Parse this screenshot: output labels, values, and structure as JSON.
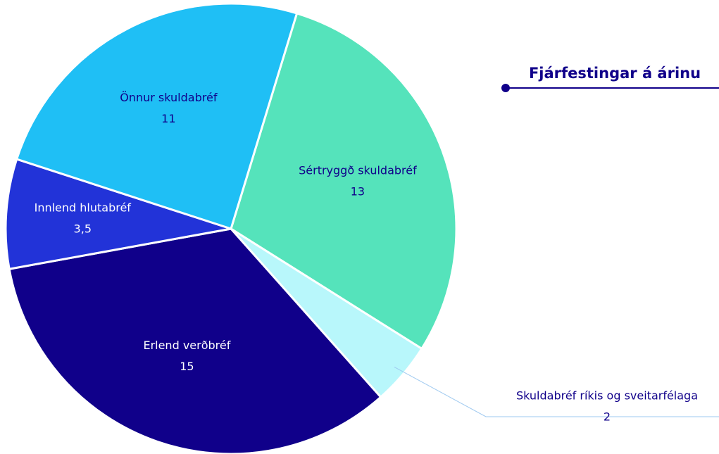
{
  "chart_data": {
    "type": "pie",
    "title": "Fjárfestingar á árinu",
    "categories": [
      "Sértryggð skuldabréf",
      "Skuldabréf ríkis og sveitarfélaga",
      "Erlend verðbréf",
      "Innlend hlutabréf",
      "Önnur skuldabréf"
    ],
    "values": [
      13,
      2,
      15,
      3.5,
      11
    ],
    "value_labels": [
      "13",
      "2",
      "15",
      "3,5",
      "11"
    ],
    "colors": [
      "#55e3bb",
      "#b8f7fb",
      "#10008a",
      "#2233d8",
      "#1fbff5"
    ]
  }
}
